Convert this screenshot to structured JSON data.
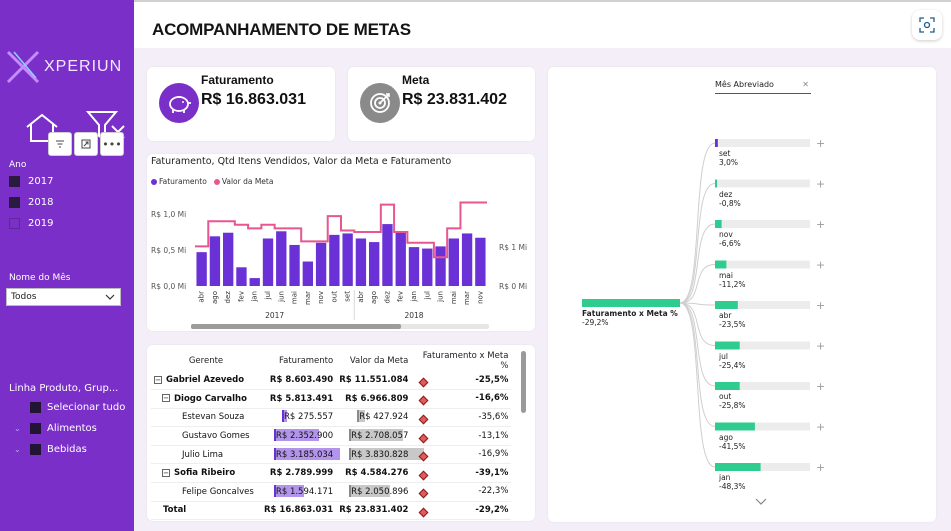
{
  "sidebar": {
    "logo_text": "XPERIUN",
    "ano_label": "Ano",
    "years": [
      "2017",
      "2018",
      "2019"
    ],
    "month_label": "Nome do Mês",
    "month_selected": "Todos",
    "product_label": "Linha Produto, Grup...",
    "tree_items": [
      "Selecionar tudo",
      "Alimentos",
      "Bebidas"
    ]
  },
  "header": {
    "title": "ACOMPANHAMENTO DE METAS"
  },
  "kpis": {
    "fat_title": "Faturamento",
    "fat_value": "R$ 16.863.031",
    "meta_title": "Meta",
    "meta_value": "R$ 23.831.402"
  },
  "chart": {
    "title": "Faturamento, Qtd Itens Vendidos, Valor da Meta e Faturamento",
    "legend": [
      "Faturamento",
      "Valor da Meta"
    ]
  },
  "chart_data": {
    "type": "bar",
    "title": "Faturamento, Qtd Itens Vendidos, Valor da Meta e Faturamento",
    "categories": [
      "abr",
      "ago",
      "dez",
      "fev",
      "jan",
      "jul",
      "jun",
      "mai",
      "mar",
      "nov",
      "out",
      "set",
      "abr",
      "ago",
      "dez",
      "fev",
      "jan",
      "jul",
      "jun",
      "mai",
      "mar",
      "nov"
    ],
    "year_groups": [
      "2017",
      "2018"
    ],
    "series": [
      {
        "name": "Faturamento",
        "values": [
          0.47,
          0.69,
          0.74,
          0.26,
          0.11,
          0.66,
          0.76,
          0.57,
          0.34,
          0.6,
          0.71,
          0.73,
          0.66,
          0.61,
          0.86,
          0.75,
          0.54,
          0.52,
          0.55,
          0.66,
          0.73,
          0.67
        ]
      },
      {
        "name": "Valor da Meta",
        "values": [
          0.55,
          0.9,
          0.9,
          0.85,
          0.8,
          0.85,
          0.8,
          0.8,
          0.62,
          0.62,
          0.97,
          0.77,
          0.75,
          0.75,
          1.13,
          0.75,
          0.6,
          0.6,
          0.4,
          0.8,
          1.16,
          1.16
        ]
      }
    ],
    "y_left_ticks": [
      "R$ 1,0 Mi",
      "R$ 0,5 Mi",
      "R$ 0,0 Mi"
    ],
    "y_right_ticks": [
      "R$ 1 Mi",
      "R$ 0 Mi"
    ],
    "ylim": [
      0,
      1.2
    ],
    "colors": {
      "bar": "#6a32d6",
      "line": "#e8568f"
    }
  },
  "table": {
    "headers": [
      "Gerente",
      "Faturamento",
      "Valor da Meta",
      "Faturamento x Meta %"
    ],
    "rows": [
      {
        "name": "Gabriel Azevedo",
        "level": 0,
        "exp": "minus",
        "fat": "R$ 8.603.490",
        "meta": "R$ 11.551.084",
        "pct": "-25,5%",
        "fat_frac": 0,
        "meta_frac": 0
      },
      {
        "name": "Diogo Carvalho",
        "level": 1,
        "exp": "minus",
        "fat": "R$ 5.813.491",
        "meta": "R$ 6.966.809",
        "pct": "-16,6%",
        "fat_frac": 0,
        "meta_frac": 0
      },
      {
        "name": "Estevan Souza",
        "level": 2,
        "exp": "",
        "fat": "R$ 275.557",
        "meta": "R$ 427.924",
        "pct": "-35,6%",
        "fat_frac": 0.03,
        "meta_frac": 0.05
      },
      {
        "name": "Gustavo Gomes",
        "level": 2,
        "exp": "",
        "fat": "R$ 2.352.900",
        "meta": "R$ 2.708.057",
        "pct": "-13,1%",
        "fat_frac": 0.3,
        "meta_frac": 0.36
      },
      {
        "name": "Julio Lima",
        "level": 2,
        "exp": "",
        "fat": "R$ 3.185.034",
        "meta": "R$ 3.830.828",
        "pct": "-16,9%",
        "fat_frac": 0.44,
        "meta_frac": 0.5
      },
      {
        "name": "Sofia Ribeiro",
        "level": 1,
        "exp": "minus",
        "fat": "R$ 2.789.999",
        "meta": "R$ 4.584.276",
        "pct": "-39,1%",
        "fat_frac": 0,
        "meta_frac": 0
      },
      {
        "name": "Felipe Goncalves",
        "level": 2,
        "exp": "",
        "fat": "R$ 1.594.171",
        "meta": "R$ 2.050.896",
        "pct": "-22,3%",
        "fat_frac": 0.2,
        "meta_frac": 0.27
      }
    ],
    "total": {
      "name": "Total",
      "fat": "R$ 16.863.031",
      "meta": "R$ 23.831.402",
      "pct": "-29,2%"
    }
  },
  "tree": {
    "header": "Mês Abreviado",
    "root_label": "Faturamento x Meta %",
    "root_value": "-29,2%",
    "nodes": [
      {
        "label": "set",
        "value": "3,0%",
        "frac": 0.03
      },
      {
        "label": "dez",
        "value": "-0,8%",
        "frac": 0.01
      },
      {
        "label": "nov",
        "value": "-6,6%",
        "frac": 0.07
      },
      {
        "label": "mai",
        "value": "-11,2%",
        "frac": 0.12
      },
      {
        "label": "abr",
        "value": "-23,5%",
        "frac": 0.24
      },
      {
        "label": "jul",
        "value": "-25,4%",
        "frac": 0.26
      },
      {
        "label": "out",
        "value": "-25,8%",
        "frac": 0.26
      },
      {
        "label": "ago",
        "value": "-41,5%",
        "frac": 0.42
      },
      {
        "label": "jan",
        "value": "-48,3%",
        "frac": 0.48
      }
    ]
  }
}
